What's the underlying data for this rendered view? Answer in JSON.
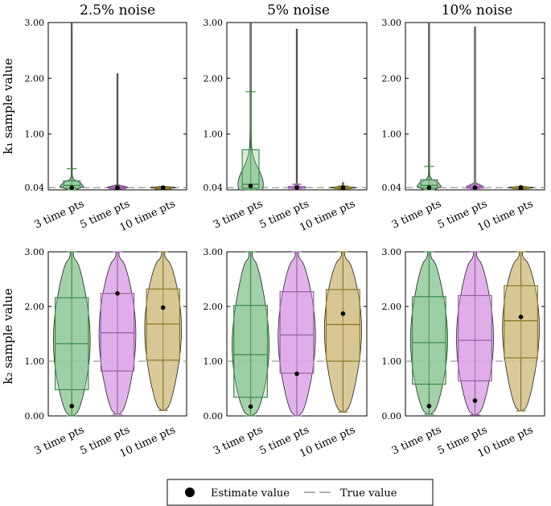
{
  "colors": {
    "green_fill": "#93c99a",
    "green_edge": "#3f8a4a",
    "purple_fill": "#dca6e6",
    "purple_edge": "#9a5fa6",
    "gold_fill": "#d4c08a",
    "gold_edge": "#8c7a2a",
    "true_line": "#999999"
  },
  "columns": [
    "2.5% noise",
    "5% noise",
    "10% noise"
  ],
  "ylabels": [
    "k₁ sample value",
    "k₂ sample value"
  ],
  "legend": {
    "estimate": "Estimate value",
    "true": "True value"
  },
  "chart_data": [
    {
      "type": "violin",
      "row": 0,
      "col": 0,
      "title": "2.5% noise",
      "ylabel": "k₁ sample value",
      "ylim": [
        0,
        3
      ],
      "yticks": [
        0.04,
        1.0,
        2.0,
        3.0
      ],
      "yticklabels": [
        "0.04",
        "1.00",
        "2.00",
        "3.00"
      ],
      "true_value": 0.04,
      "categories": [
        "3 time pts",
        "5 time pts",
        "10 time pts"
      ],
      "series": [
        {
          "name": "3 time pts",
          "q1": 0.03,
          "median": 0.08,
          "q3": 0.16,
          "whisker_low": 0.0,
          "whisker_high": 0.38,
          "max": 3.0,
          "estimate": 0.04
        },
        {
          "name": "5 time pts",
          "q1": 0.03,
          "median": 0.04,
          "q3": 0.05,
          "whisker_low": 0.02,
          "whisker_high": 0.07,
          "max": 2.08,
          "estimate": 0.04
        },
        {
          "name": "10 time pts",
          "q1": 0.035,
          "median": 0.04,
          "q3": 0.045,
          "whisker_low": 0.03,
          "whisker_high": 0.05,
          "max": 0.06,
          "estimate": 0.04
        }
      ]
    },
    {
      "type": "violin",
      "row": 0,
      "col": 1,
      "title": "5% noise",
      "ylabel": "",
      "ylim": [
        0,
        3
      ],
      "yticks": [
        0.04,
        1.0,
        2.0,
        3.0
      ],
      "yticklabels": [
        "0.04",
        "1.00",
        "2.00",
        "3.00"
      ],
      "true_value": 0.04,
      "categories": [
        "3 time pts",
        "5 time pts",
        "10 time pts"
      ],
      "series": [
        {
          "name": "3 time pts",
          "q1": 0.03,
          "median": 0.1,
          "q3": 0.72,
          "whisker_low": 0.0,
          "whisker_high": 1.76,
          "max": 3.0,
          "estimate": 0.07
        },
        {
          "name": "5 time pts",
          "q1": 0.03,
          "median": 0.04,
          "q3": 0.06,
          "whisker_low": 0.01,
          "whisker_high": 0.1,
          "max": 2.88,
          "estimate": 0.04
        },
        {
          "name": "10 time pts",
          "q1": 0.03,
          "median": 0.04,
          "q3": 0.05,
          "whisker_low": 0.02,
          "whisker_high": 0.07,
          "max": 0.13,
          "estimate": 0.04
        }
      ]
    },
    {
      "type": "violin",
      "row": 0,
      "col": 2,
      "title": "10% noise",
      "ylabel": "",
      "ylim": [
        0,
        3
      ],
      "yticks": [
        0.04,
        1.0,
        2.0,
        3.0
      ],
      "yticklabels": [
        "0.04",
        "1.00",
        "2.00",
        "3.00"
      ],
      "true_value": 0.04,
      "categories": [
        "3 time pts",
        "5 time pts",
        "10 time pts"
      ],
      "series": [
        {
          "name": "3 time pts",
          "q1": 0.03,
          "median": 0.08,
          "q3": 0.18,
          "whisker_low": 0.0,
          "whisker_high": 0.42,
          "max": 3.0,
          "estimate": 0.04
        },
        {
          "name": "5 time pts",
          "q1": 0.03,
          "median": 0.05,
          "q3": 0.07,
          "whisker_low": 0.01,
          "whisker_high": 0.1,
          "max": 2.92,
          "estimate": 0.04
        },
        {
          "name": "10 time pts",
          "q1": 0.03,
          "median": 0.04,
          "q3": 0.05,
          "whisker_low": 0.02,
          "whisker_high": 0.06,
          "max": 0.08,
          "estimate": 0.04
        }
      ]
    },
    {
      "type": "violin",
      "row": 1,
      "col": 0,
      "title": "",
      "ylabel": "k₂ sample value",
      "ylim": [
        0,
        3
      ],
      "yticks": [
        0.0,
        1.0,
        2.0,
        3.0
      ],
      "yticklabels": [
        "0.00",
        "1.00",
        "2.00",
        "3.00"
      ],
      "true_value": 1.0,
      "categories": [
        "3 time pts",
        "5 time pts",
        "10 time pts"
      ],
      "series": [
        {
          "name": "3 time pts",
          "q1": 0.48,
          "median": 1.32,
          "q3": 2.16,
          "whisker_low": 0.0,
          "whisker_high": 3.0,
          "estimate": 0.18
        },
        {
          "name": "5 time pts",
          "q1": 0.82,
          "median": 1.52,
          "q3": 2.24,
          "whisker_low": 0.03,
          "whisker_high": 3.0,
          "estimate": 2.24
        },
        {
          "name": "10 time pts",
          "q1": 1.02,
          "median": 1.68,
          "q3": 2.32,
          "whisker_low": 0.1,
          "whisker_high": 3.0,
          "estimate": 1.98
        }
      ]
    },
    {
      "type": "violin",
      "row": 1,
      "col": 1,
      "title": "",
      "ylabel": "",
      "ylim": [
        0,
        3
      ],
      "yticks": [
        0.0,
        1.0,
        2.0,
        3.0
      ],
      "yticklabels": [
        "0.00",
        "1.00",
        "2.00",
        "3.00"
      ],
      "true_value": 1.0,
      "categories": [
        "3 time pts",
        "5 time pts",
        "10 time pts"
      ],
      "series": [
        {
          "name": "3 time pts",
          "q1": 0.34,
          "median": 1.12,
          "q3": 2.02,
          "whisker_low": 0.0,
          "whisker_high": 3.0,
          "estimate": 0.17
        },
        {
          "name": "5 time pts",
          "q1": 0.78,
          "median": 1.48,
          "q3": 2.27,
          "whisker_low": 0.0,
          "whisker_high": 3.0,
          "estimate": 0.77
        },
        {
          "name": "10 time pts",
          "q1": 1.0,
          "median": 1.67,
          "q3": 2.31,
          "whisker_low": 0.07,
          "whisker_high": 3.0,
          "estimate": 1.87
        }
      ]
    },
    {
      "type": "violin",
      "row": 1,
      "col": 2,
      "title": "",
      "ylabel": "",
      "ylim": [
        0,
        3
      ],
      "yticks": [
        0.0,
        1.0,
        2.0,
        3.0
      ],
      "yticklabels": [
        "0.00",
        "1.00",
        "2.00",
        "3.00"
      ],
      "true_value": 1.0,
      "categories": [
        "3 time pts",
        "5 time pts",
        "10 time pts"
      ],
      "series": [
        {
          "name": "3 time pts",
          "q1": 0.58,
          "median": 1.34,
          "q3": 2.18,
          "whisker_low": 0.03,
          "whisker_high": 3.0,
          "estimate": 0.18
        },
        {
          "name": "5 time pts",
          "q1": 0.64,
          "median": 1.38,
          "q3": 2.2,
          "whisker_low": 0.02,
          "whisker_high": 3.0,
          "estimate": 0.28
        },
        {
          "name": "10 time pts",
          "q1": 1.06,
          "median": 1.74,
          "q3": 2.38,
          "whisker_low": 0.09,
          "whisker_high": 3.0,
          "estimate": 1.81
        }
      ]
    }
  ]
}
